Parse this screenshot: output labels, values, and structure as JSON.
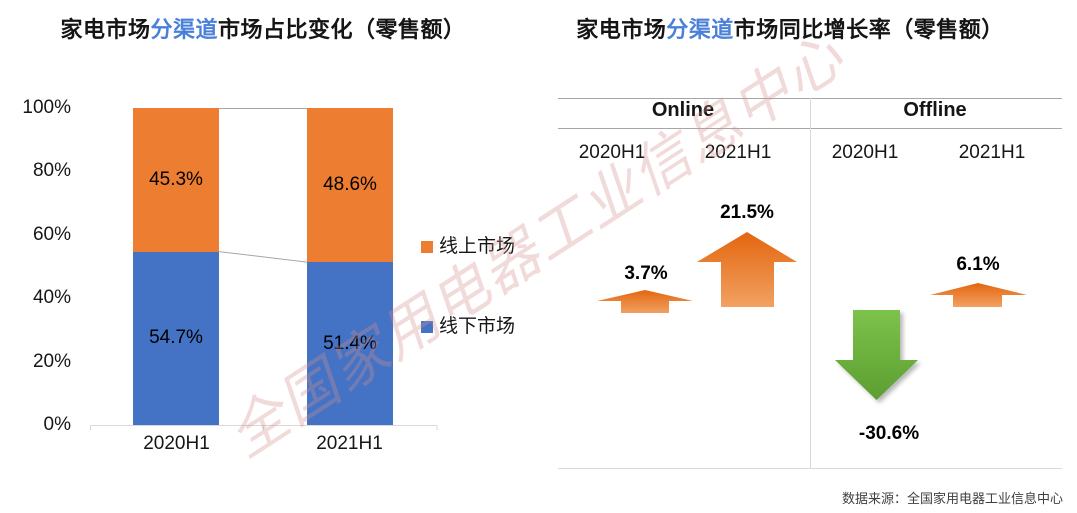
{
  "watermark": {
    "text": "全国家用电器工业信息中心",
    "color": "#D6928E"
  },
  "source_note": "数据来源：全国家用电器工业信息中心",
  "theme": {
    "bar_online_color": "#ED7D31",
    "bar_offline_color": "#4472C4",
    "title_highlight_color": "#4A80D9",
    "up_arrow_gradient": [
      "#E3660E",
      "#F2A163"
    ],
    "down_arrow_gradient": [
      "#7CC24B",
      "#5C9E31"
    ],
    "rule_dark": "#A6A6A6",
    "rule_light": "#D9D9D9"
  },
  "left_chart": {
    "title": {
      "pre": "家电市场",
      "highlight": "分渠道",
      "post": "市场占比变化（零售额）"
    },
    "y_ticks": [
      "100%",
      "80%",
      "60%",
      "40%",
      "20%",
      "0%"
    ],
    "categories": [
      "2020H1",
      "2021H1"
    ],
    "bar_labels": {
      "online": [
        "45.3%",
        "48.6%"
      ],
      "offline": [
        "54.7%",
        "51.4%"
      ]
    },
    "legend": [
      {
        "label": "线上市场",
        "color": "#ED7D31"
      },
      {
        "label": "线下市场",
        "color": "#4472C4"
      }
    ]
  },
  "right_chart": {
    "title": {
      "pre": "家电市场",
      "highlight": "分渠道",
      "post": "市场同比增长率（零售额）"
    },
    "groups": [
      {
        "name": "Online"
      },
      {
        "name": "Offline"
      }
    ],
    "period_labels": [
      "2020H1",
      "2021H1",
      "2020H1",
      "2021H1"
    ],
    "values": {
      "online_2020H1": "3.7%",
      "online_2021H1": "21.5%",
      "offline_2020H1": "-30.6%",
      "offline_2021H1": "6.1%"
    }
  },
  "chart_data": [
    {
      "type": "bar",
      "subtype": "stacked-100-percent",
      "title": "家电市场分渠道市场占比变化（零售额）",
      "categories": [
        "2020H1",
        "2021H1"
      ],
      "series": [
        {
          "name": "线上市场",
          "color": "#ED7D31",
          "values": [
            45.3,
            48.6
          ]
        },
        {
          "name": "线下市场",
          "color": "#4472C4",
          "values": [
            54.7,
            51.4
          ]
        }
      ],
      "unit": "%",
      "ylim": [
        0,
        100
      ],
      "y_ticks": [
        "0%",
        "20%",
        "40%",
        "60%",
        "80%",
        "100%"
      ],
      "legend_position": "right",
      "data_labels": true,
      "grid": false,
      "series_connector_lines": true
    },
    {
      "type": "table",
      "subtype": "arrow-infographic",
      "title": "家电市场分渠道市场同比增长率（零售额）",
      "columns": [
        "Online 2020H1",
        "Online 2021H1",
        "Offline 2020H1",
        "Offline 2021H1"
      ],
      "values": [
        3.7,
        21.5,
        -30.6,
        6.1
      ],
      "unit": "%",
      "encoding_note": "orange up-arrow = positive growth (size ~ magnitude), green down-arrow = negative growth"
    }
  ]
}
